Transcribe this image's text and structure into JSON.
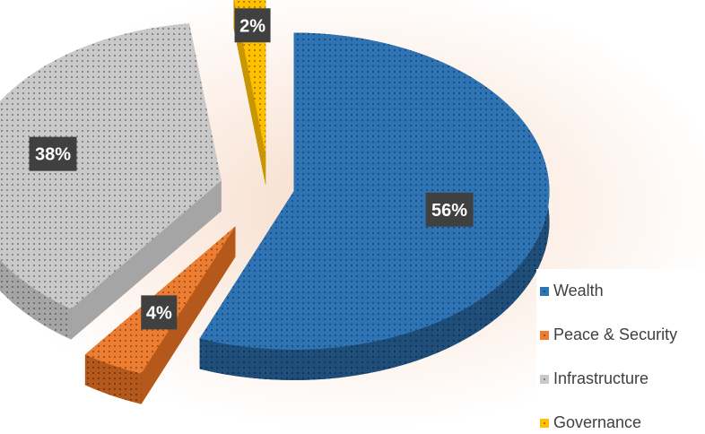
{
  "chart_data": {
    "type": "pie",
    "title": "",
    "style": "3d-exploded",
    "unit": "%",
    "categories": [
      "Wealth",
      "Peace & Security",
      "Infrastructure",
      "Governance"
    ],
    "values": [
      56,
      4,
      38,
      2
    ],
    "labels": [
      "56%",
      "4%",
      "38%",
      "2%"
    ],
    "legend_position": "right",
    "colors": [
      "#2e74b5",
      "#ed7d31",
      "#c9c9c9",
      "#ffc000"
    ],
    "side_colors": [
      "#1f4e7a",
      "#b4591b",
      "#a5a5a5",
      "#c89600"
    ]
  },
  "legend": {
    "items": [
      {
        "label": "Wealth",
        "color": "#2e74b5"
      },
      {
        "label": "Peace & Security",
        "color": "#ed7d31"
      },
      {
        "label": "Infrastructure",
        "color": "#c9c9c9"
      },
      {
        "label": "Governance",
        "color": "#ffc000"
      }
    ]
  }
}
